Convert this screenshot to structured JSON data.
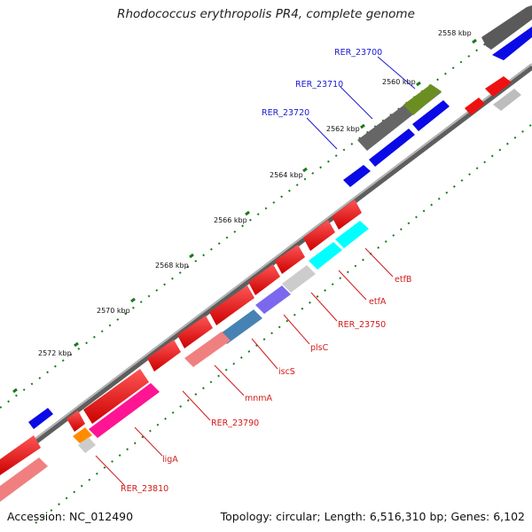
{
  "title": "Rhodococcus erythropolis PR4, complete genome",
  "footer": {
    "accession": "Accession: NC_012490",
    "summary": "Topology: circular; Length: 6,516,310 bp; Genes: 6,102"
  },
  "scale_labels": [
    "2558 kbp",
    "2560 kbp",
    "2562 kbp",
    "2564 kbp",
    "2566 kbp",
    "2568 kbp",
    "2570 kbp",
    "2572 kbp"
  ],
  "blue_labels": [
    "RER_23700",
    "RER_23710",
    "RER_23720"
  ],
  "red_labels": [
    "etfB",
    "etfA",
    "RER_23750",
    "plsC",
    "iscS",
    "mnmA",
    "RER_23790",
    "ligA",
    "RER_23810"
  ],
  "colors": {
    "axis": "#8a8a8a",
    "tick": "#1a7a1a",
    "forward_gene": "#ee1111",
    "reverse_gene": "#0a0ae6",
    "label_blue": "#1a1ad2",
    "label_red": "#d21a1a"
  }
}
